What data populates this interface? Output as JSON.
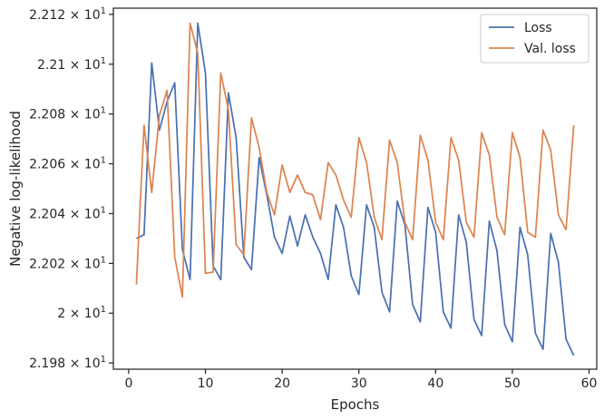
{
  "chart_data": {
    "type": "line",
    "xlabel": "Epochs",
    "ylabel": "Negative log-likelihood",
    "xlim": [
      -2,
      61
    ],
    "ylim": [
      21.9775,
      22.1225
    ],
    "x_ticks": [
      0,
      10,
      20,
      30,
      40,
      50,
      60
    ],
    "y_ticks": [
      {
        "value": 21.98,
        "mantissa": "2.198"
      },
      {
        "value": 22.0,
        "mantissa": "2"
      },
      {
        "value": 22.02,
        "mantissa": "2.202"
      },
      {
        "value": 22.04,
        "mantissa": "2.204"
      },
      {
        "value": 22.06,
        "mantissa": "2.206"
      },
      {
        "value": 22.08,
        "mantissa": "2.208"
      },
      {
        "value": 22.1,
        "mantissa": "2.21"
      },
      {
        "value": 22.12,
        "mantissa": "2.212"
      }
    ],
    "y_tick_base": "10",
    "y_tick_exponent": "1",
    "grid": false,
    "legend_position": "top-right",
    "x": [
      1,
      2,
      3,
      4,
      5,
      6,
      7,
      8,
      9,
      10,
      11,
      12,
      13,
      14,
      15,
      16,
      17,
      18,
      19,
      20,
      21,
      22,
      23,
      24,
      25,
      26,
      27,
      28,
      29,
      30,
      31,
      32,
      33,
      34,
      35,
      36,
      37,
      38,
      39,
      40,
      41,
      42,
      43,
      44,
      45,
      46,
      47,
      48,
      49,
      50,
      51,
      52,
      53,
      54,
      55,
      56,
      57,
      58
    ],
    "series": [
      {
        "name": "Loss",
        "color": "#4c72b0",
        "values": [
          22.03,
          22.0315,
          22.1005,
          22.0735,
          22.085,
          22.0925,
          22.0255,
          22.0135,
          22.1165,
          22.0965,
          22.019,
          22.0135,
          22.0885,
          22.0705,
          22.0225,
          22.0175,
          22.0625,
          22.0475,
          22.0305,
          22.024,
          22.039,
          22.027,
          22.0395,
          22.0305,
          22.024,
          22.0135,
          22.0435,
          22.0345,
          22.015,
          22.0075,
          22.0435,
          22.0345,
          22.0085,
          22.0005,
          22.045,
          22.0355,
          22.0035,
          21.9965,
          22.0425,
          22.0325,
          22.0005,
          21.994,
          22.0395,
          22.0285,
          21.9975,
          21.991,
          22.037,
          22.025,
          21.9955,
          21.9885,
          22.0345,
          22.0235,
          21.992,
          21.9855,
          22.032,
          22.0205,
          21.9895,
          21.983
        ]
      },
      {
        "name": "Val. loss",
        "color": "#dd8452",
        "values": [
          22.0115,
          22.0755,
          22.0485,
          22.0795,
          22.0895,
          22.0225,
          22.0065,
          22.1165,
          22.1045,
          22.016,
          22.0165,
          22.0965,
          22.0815,
          22.0275,
          22.0235,
          22.0785,
          22.0665,
          22.0485,
          22.0395,
          22.0595,
          22.0485,
          22.0555,
          22.0485,
          22.0475,
          22.0375,
          22.0605,
          22.0555,
          22.0455,
          22.0385,
          22.0705,
          22.0605,
          22.0385,
          22.0295,
          22.0695,
          22.0605,
          22.0365,
          22.0295,
          22.0715,
          22.0615,
          22.0365,
          22.0295,
          22.0705,
          22.0615,
          22.0365,
          22.0305,
          22.0725,
          22.0635,
          22.0385,
          22.0315,
          22.0725,
          22.0625,
          22.0325,
          22.0305,
          22.0735,
          22.0655,
          22.0395,
          22.0335,
          22.0755
        ]
      }
    ]
  }
}
